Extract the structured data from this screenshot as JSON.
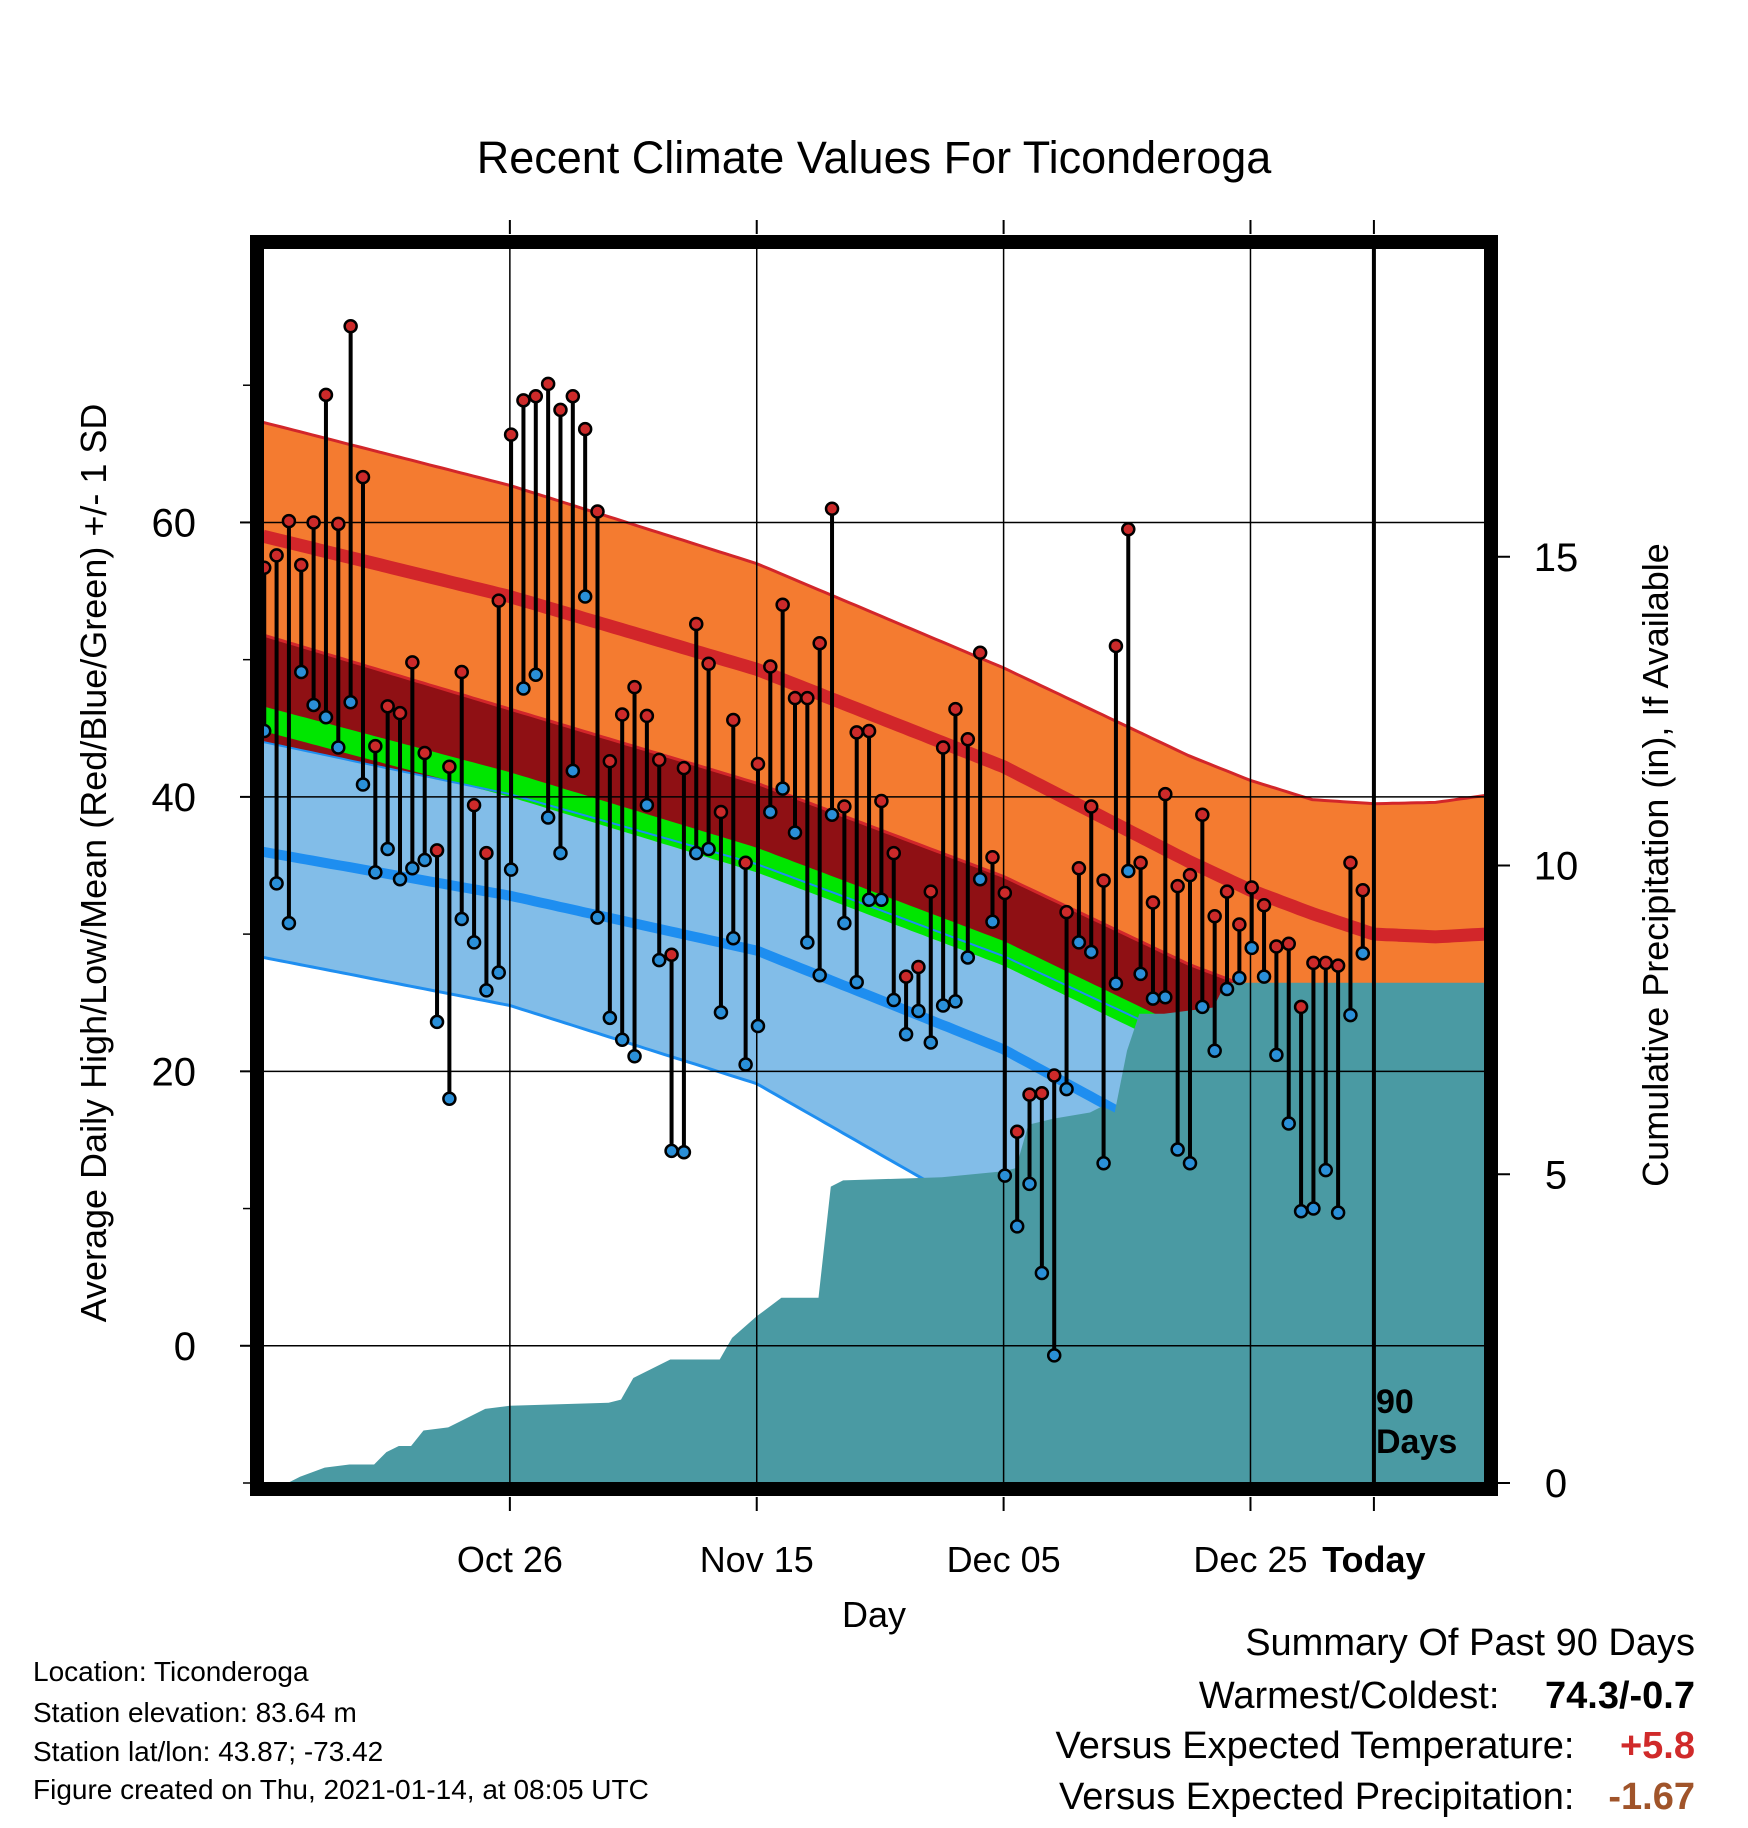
{
  "chart_data": {
    "type": "line",
    "title": "Recent Climate Values For Ticonderoga",
    "xlabel": "Day",
    "ylabel": "Average Daily High/Low/Mean (Red/Blue/Green) +/- 1 SD",
    "y2label": "Cumulative Precipitation (in), If Available",
    "x_tick_labels": [
      "Oct 26",
      "Nov 15",
      "Dec 05",
      "Dec 25",
      "Today"
    ],
    "y_ticks": [
      "0",
      "20",
      "40",
      "60"
    ],
    "y2_ticks": [
      "0",
      "5",
      "10",
      "15"
    ],
    "ylim": [
      -10,
      80
    ],
    "y2lim": [
      0,
      20
    ],
    "today_marker_label": [
      "90",
      "Days"
    ],
    "day_range": [
      -90,
      9
    ],
    "x_tick_days": [
      -70,
      -50,
      -30,
      -10,
      0
    ],
    "normal_high": [
      [
        -90,
        59.0
      ],
      [
        -70,
        54.6
      ],
      [
        -50,
        49.3
      ],
      [
        -30,
        42.2
      ],
      [
        -15,
        35.3
      ],
      [
        -10,
        33.2
      ],
      [
        -5,
        31.5
      ],
      [
        0,
        30.0
      ],
      [
        5,
        29.8
      ],
      [
        9,
        30.0
      ]
    ],
    "normal_high_plus_sd": [
      [
        -90,
        67.3
      ],
      [
        -70,
        62.7
      ],
      [
        -50,
        57.0
      ],
      [
        -30,
        49.4
      ],
      [
        -15,
        43.0
      ],
      [
        -10,
        41.2
      ],
      [
        -5,
        39.8
      ],
      [
        0,
        39.5
      ],
      [
        5,
        39.6
      ],
      [
        9,
        40.1
      ]
    ],
    "normal_high_minus_sd": [
      [
        -90,
        51.8
      ],
      [
        -70,
        46.4
      ],
      [
        -50,
        41.0
      ],
      [
        -30,
        34.2
      ],
      [
        -15,
        27.8
      ],
      [
        -10,
        26.1
      ],
      [
        -5,
        23.7
      ],
      [
        0,
        22.1
      ],
      [
        5,
        22.0
      ],
      [
        9,
        21.9
      ]
    ],
    "normal_mean": [
      [
        -90,
        45.7
      ],
      [
        -70,
        40.9
      ],
      [
        -50,
        35.4
      ],
      [
        -30,
        28.6
      ],
      [
        -15,
        22.1
      ],
      [
        -10,
        20.2
      ],
      [
        -5,
        17.8
      ],
      [
        0,
        16.3
      ],
      [
        5,
        16.1
      ],
      [
        9,
        16.6
      ]
    ],
    "normal_low": [
      [
        -90,
        36.0
      ],
      [
        -70,
        32.8
      ],
      [
        -50,
        28.8
      ],
      [
        -30,
        21.6
      ],
      [
        -15,
        14.3
      ],
      [
        -10,
        11.7
      ],
      [
        -5,
        9.3
      ],
      [
        0,
        7.7
      ],
      [
        5,
        7.3
      ],
      [
        9,
        7.4
      ]
    ],
    "normal_low_plus_sd": [
      [
        -90,
        44.0
      ],
      [
        -70,
        40.2
      ],
      [
        -50,
        35.1
      ],
      [
        -30,
        28.4
      ],
      [
        -15,
        22.1
      ],
      [
        -10,
        19.6
      ],
      [
        -5,
        17.0
      ],
      [
        0,
        15.8
      ],
      [
        5,
        15.5
      ],
      [
        9,
        15.8
      ]
    ],
    "normal_low_minus_sd": [
      [
        -90,
        28.3
      ],
      [
        -70,
        24.8
      ],
      [
        -50,
        19.1
      ],
      [
        -30,
        8.8
      ],
      [
        -15,
        1.2
      ],
      [
        -10,
        -0.2
      ],
      [
        -5,
        -0.2
      ],
      [
        0,
        -0.2
      ],
      [
        5,
        -0.2
      ],
      [
        9,
        -0.2
      ]
    ],
    "daily_temps": [
      [
        -89.9,
        56.7,
        44.8
      ],
      [
        -88.9,
        57.6,
        33.7
      ],
      [
        -87.9,
        60.1,
        30.8
      ],
      [
        -86.9,
        56.9,
        49.1
      ],
      [
        -85.9,
        60.0,
        46.7
      ],
      [
        -84.9,
        69.3,
        45.8
      ],
      [
        -83.9,
        59.9,
        43.6
      ],
      [
        -82.9,
        74.3,
        46.9
      ],
      [
        -81.9,
        63.3,
        40.9
      ],
      [
        -80.9,
        43.7,
        34.5
      ],
      [
        -79.9,
        46.6,
        36.2
      ],
      [
        -78.9,
        46.1,
        34.0
      ],
      [
        -77.9,
        49.8,
        34.8
      ],
      [
        -76.9,
        43.2,
        35.4
      ],
      [
        -75.9,
        36.1,
        23.6
      ],
      [
        -74.9,
        42.2,
        18.0
      ],
      [
        -73.9,
        49.1,
        31.1
      ],
      [
        -72.9,
        39.4,
        29.4
      ],
      [
        -71.9,
        35.9,
        25.9
      ],
      [
        -70.9,
        54.3,
        27.2
      ],
      [
        -69.9,
        66.4,
        34.7
      ],
      [
        -68.9,
        68.9,
        47.9
      ],
      [
        -67.9,
        69.2,
        48.9
      ],
      [
        -66.9,
        70.1,
        38.5
      ],
      [
        -65.9,
        68.2,
        35.9
      ],
      [
        -64.9,
        69.2,
        41.9
      ],
      [
        -63.9,
        66.8,
        54.6
      ],
      [
        -62.9,
        60.8,
        31.2
      ],
      [
        -61.9,
        42.6,
        23.9
      ],
      [
        -60.9,
        46.0,
        22.3
      ],
      [
        -59.9,
        48.0,
        21.1
      ],
      [
        -58.9,
        45.9,
        39.4
      ],
      [
        -57.9,
        42.7,
        28.1
      ],
      [
        -56.9,
        28.5,
        14.2
      ],
      [
        -55.9,
        42.1,
        14.1
      ],
      [
        -54.9,
        52.6,
        35.9
      ],
      [
        -53.9,
        49.7,
        36.2
      ],
      [
        -52.9,
        38.9,
        24.3
      ],
      [
        -51.9,
        45.6,
        29.7
      ],
      [
        -50.9,
        35.2,
        20.5
      ],
      [
        -49.9,
        42.4,
        23.3
      ],
      [
        -48.9,
        49.5,
        38.9
      ],
      [
        -47.9,
        54.0,
        40.6
      ],
      [
        -46.9,
        47.2,
        37.4
      ],
      [
        -45.9,
        47.2,
        29.4
      ],
      [
        -44.9,
        51.2,
        27.0
      ],
      [
        -43.9,
        61.0,
        38.7
      ],
      [
        -42.9,
        39.3,
        30.8
      ],
      [
        -41.9,
        44.7,
        26.5
      ],
      [
        -40.9,
        44.8,
        32.5
      ],
      [
        -39.9,
        39.7,
        32.5
      ],
      [
        -38.9,
        35.9,
        25.2
      ],
      [
        -37.9,
        26.9,
        22.7
      ],
      [
        -36.9,
        27.6,
        24.4
      ],
      [
        -35.9,
        33.1,
        22.1
      ],
      [
        -34.9,
        43.6,
        24.8
      ],
      [
        -33.9,
        46.4,
        25.1
      ],
      [
        -32.9,
        44.2,
        28.3
      ],
      [
        -31.9,
        50.5,
        34.0
      ],
      [
        -30.9,
        35.6,
        30.9
      ],
      [
        -29.9,
        33.0,
        12.4
      ],
      [
        -28.9,
        15.6,
        8.7
      ],
      [
        -27.9,
        18.3,
        11.8
      ],
      [
        -26.9,
        18.4,
        5.3
      ],
      [
        -25.9,
        19.7,
        -0.7
      ],
      [
        -24.9,
        31.6,
        18.7
      ],
      [
        -23.9,
        34.8,
        29.4
      ],
      [
        -22.9,
        39.3,
        28.7
      ],
      [
        -21.9,
        33.9,
        13.3
      ],
      [
        -20.9,
        51.0,
        26.4
      ],
      [
        -19.9,
        59.5,
        34.6
      ],
      [
        -18.9,
        35.2,
        27.1
      ],
      [
        -17.9,
        32.3,
        25.3
      ],
      [
        -16.9,
        40.2,
        25.4
      ],
      [
        -15.9,
        33.5,
        14.3
      ],
      [
        -14.9,
        34.3,
        13.3
      ],
      [
        -13.9,
        38.7,
        24.7
      ],
      [
        -12.9,
        31.3,
        21.5
      ],
      [
        -11.9,
        33.1,
        26.0
      ],
      [
        -10.9,
        30.7,
        26.8
      ],
      [
        -9.9,
        33.4,
        29.0
      ],
      [
        -8.9,
        32.1,
        26.9
      ],
      [
        -7.9,
        29.1,
        21.2
      ],
      [
        -6.9,
        29.3,
        16.2
      ],
      [
        -5.9,
        24.7,
        9.8
      ],
      [
        -4.9,
        27.9,
        10.0
      ],
      [
        -3.9,
        27.9,
        12.8
      ],
      [
        -2.9,
        27.7,
        9.7
      ],
      [
        -1.9,
        35.2,
        24.1
      ],
      [
        -0.9,
        33.2,
        28.6
      ]
    ],
    "cumulative_precip": [
      [
        -90,
        0.0
      ],
      [
        -88,
        0.0
      ],
      [
        -87,
        0.1
      ],
      [
        -85,
        0.25
      ],
      [
        -83,
        0.3
      ],
      [
        -81,
        0.3
      ],
      [
        -80,
        0.5
      ],
      [
        -79,
        0.6
      ],
      [
        -78,
        0.6
      ],
      [
        -77,
        0.85
      ],
      [
        -75,
        0.9
      ],
      [
        -74,
        1.0
      ],
      [
        -72,
        1.2
      ],
      [
        -70,
        1.25
      ],
      [
        -62,
        1.3
      ],
      [
        -61,
        1.35
      ],
      [
        -60,
        1.7
      ],
      [
        -57,
        2.0
      ],
      [
        -53,
        2.0
      ],
      [
        -52,
        2.35
      ],
      [
        -50,
        2.7
      ],
      [
        -48,
        3.0
      ],
      [
        -45,
        3.0
      ],
      [
        -44,
        4.8
      ],
      [
        -43,
        4.9
      ],
      [
        -35,
        4.95
      ],
      [
        -30,
        5.05
      ],
      [
        -29,
        5.1
      ],
      [
        -28,
        5.8
      ],
      [
        -26,
        5.9
      ],
      [
        -23,
        6.0
      ],
      [
        -22,
        6.1
      ],
      [
        -21,
        6.0
      ],
      [
        -20,
        7.0
      ],
      [
        -19,
        7.6
      ],
      [
        -17,
        7.6
      ],
      [
        -13,
        7.7
      ],
      [
        -12,
        8.1
      ],
      [
        -9,
        8.1
      ],
      [
        -5,
        8.1
      ],
      [
        9,
        8.1
      ]
    ],
    "colors": {
      "high_band": "#f47b30",
      "high_line": "#d2262a",
      "overlap_band": "#8f1014",
      "mean_band": "#00e600",
      "low_band": "#82bde8",
      "low_line": "#1e8ef0",
      "precip": "#4a9aa3",
      "high_dot": "#cc2a2a",
      "low_dot": "#2a8fd8"
    }
  },
  "info": {
    "location": "Location: Ticonderoga",
    "elevation": "Station elevation: 83.64 m",
    "latlon": "Station lat/lon: 43.87; -73.42",
    "created": "Figure created on Thu, 2021-01-14, at 08:05 UTC"
  },
  "summary": {
    "title": "Summary Of Past 90 Days",
    "warmest_label": "Warmest/Coldest:",
    "warmest_value": "74.3/-0.7",
    "temp_label": "Versus Expected Temperature:",
    "temp_value": "+5.8",
    "temp_color": "#d02a2a",
    "precip_label": "Versus Expected Precipitation:",
    "precip_value": "-1.67",
    "precip_color": "#a0542a"
  }
}
